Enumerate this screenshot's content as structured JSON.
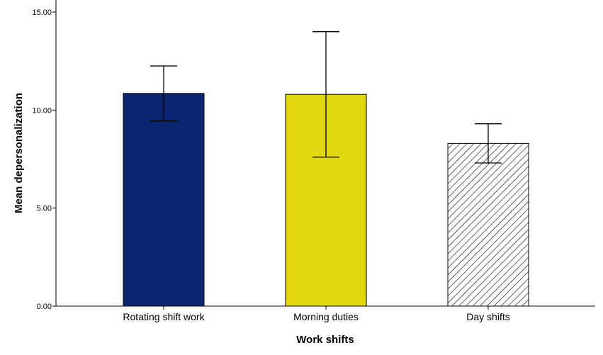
{
  "chart_data": {
    "type": "bar",
    "xlabel": "Work shifts",
    "ylabel": "Mean depersonalization",
    "categories": [
      "Rotating shift work",
      "Morning duties",
      "Day shifts"
    ],
    "values": [
      10.85,
      10.8,
      8.3
    ],
    "error_low": [
      9.45,
      7.6,
      7.3
    ],
    "error_high": [
      12.25,
      14.0,
      9.3
    ],
    "ylim": [
      0,
      15
    ],
    "yticks": [
      0,
      5,
      10,
      15
    ],
    "ytick_labels": [
      "0.00",
      "5.00",
      "10.00",
      "15.00"
    ],
    "grid": false,
    "legend": "none",
    "bar_styles": [
      {
        "fill": "#0b2670",
        "pattern": "none"
      },
      {
        "fill": "#e2d70f",
        "pattern": "none"
      },
      {
        "fill": "#ffffff",
        "pattern": "diagonal-hatch"
      }
    ]
  }
}
